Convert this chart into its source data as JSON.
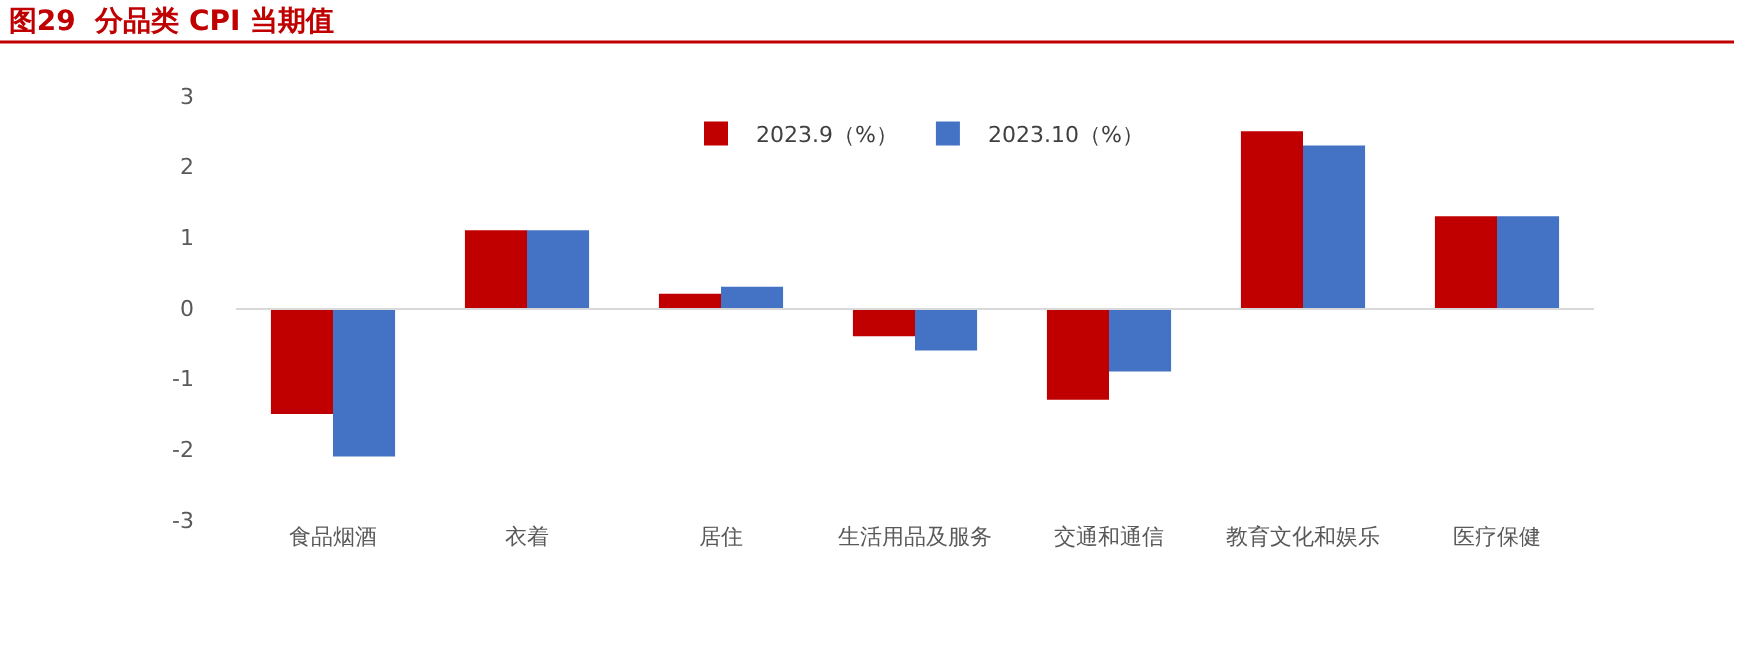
{
  "chart_data": {
    "type": "bar",
    "title": "图29  分品类 CPI 当期值",
    "categories": [
      "食品烟酒",
      "衣着",
      "居住",
      "生活用品及服务",
      "交通和通信",
      "教育文化和娱乐",
      "医疗保健"
    ],
    "series": [
      {
        "name": "2023.9（%）",
        "color": "#c00000",
        "values": [
          -1.5,
          1.1,
          0.2,
          -0.4,
          -1.3,
          2.5,
          1.3
        ]
      },
      {
        "name": "2023.10（%）",
        "color": "#4472c4",
        "values": [
          -2.1,
          1.1,
          0.3,
          -0.6,
          -0.9,
          2.3,
          1.3
        ]
      }
    ],
    "ylim": [
      -3,
      3
    ],
    "yticks": [
      -3,
      -2,
      -1,
      0,
      1,
      2,
      3
    ],
    "legend": "top"
  }
}
